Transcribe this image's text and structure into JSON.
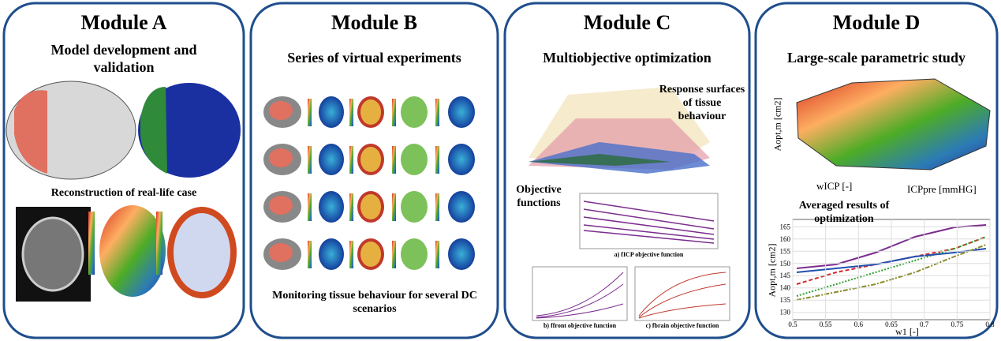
{
  "modules": [
    {
      "title": "Module A",
      "subtitle": "Model development and validation",
      "caption": "Reconstruction of real-life case"
    },
    {
      "title": "Module B",
      "subtitle": "Series of virtual experiments",
      "caption": "Monitoring tissue behaviour for several DC scenarios"
    },
    {
      "title": "Module C",
      "subtitle": "Multiobjective optimization"
    },
    {
      "title": "Module D",
      "subtitle": "Large-scale parametric study"
    }
  ],
  "module_c": {
    "surface_label": "Response surfaces of tissue behaviour",
    "objective_label": "Objective functions",
    "plot_captions": [
      "a) fICP objective function",
      "b) ffront objective function",
      "c) fbrain objective function"
    ]
  },
  "module_d": {
    "surface_z_label": "Aopt,m [cm2]",
    "surface_x_label": "wICP [-]",
    "surface_y_label": "ICPpre [mmHG]",
    "results_title": "Averaged results of optimization",
    "results_chart": {
      "x_label": "w1 [-]",
      "y_label": "Aopt,m [cm2]",
      "xlim": [
        0.5,
        0.8
      ],
      "xticks": [
        0.5,
        0.55,
        0.6,
        0.65,
        0.7,
        0.75,
        0.8
      ],
      "ylim": [
        127,
        168
      ],
      "yticks": [
        130,
        135,
        140,
        145,
        150,
        155,
        160,
        165
      ]
    }
  }
}
